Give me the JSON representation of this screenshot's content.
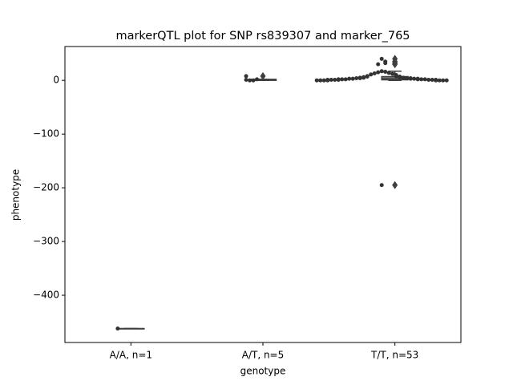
{
  "chart_data": {
    "type": "boxswarm",
    "title": "markerQTL plot for SNP rs839307 and marker_765",
    "x_label": "genotype",
    "y_label": "phenotype",
    "categories": [
      "A/A, n=1",
      "A/T, n=5",
      "T/T, n=53"
    ],
    "ylim": [
      -488,
      63
    ],
    "yticks": [
      {
        "value": -400,
        "label": "−400"
      },
      {
        "value": -300,
        "label": "−300"
      },
      {
        "value": -200,
        "label": "−200"
      },
      {
        "value": -100,
        "label": "−100"
      },
      0
    ],
    "boxes": [
      {
        "q1": -462,
        "median": -462,
        "q3": -462,
        "whislo": -462,
        "whishi": -462,
        "fliers": []
      },
      {
        "q1": 0,
        "median": 1,
        "q3": 2,
        "whislo": 0,
        "whishi": 2,
        "fliers": [
          8
        ]
      },
      {
        "q1": 1,
        "median": 3,
        "q3": 7,
        "whislo": 0,
        "whishi": 17,
        "fliers": [
          30,
          32,
          35,
          40,
          -195
        ]
      }
    ],
    "points": [
      [
        -462
      ],
      [
        0,
        0,
        1,
        2,
        8
      ],
      [
        -195,
        40,
        35,
        32,
        30,
        17,
        16,
        15,
        14,
        13,
        12,
        11,
        10,
        9,
        8,
        8,
        7,
        7,
        6,
        6,
        5,
        5,
        5,
        4,
        4,
        4,
        4,
        3,
        3,
        3,
        3,
        3,
        2,
        2,
        2,
        2,
        2,
        2,
        1,
        1,
        1,
        1,
        1,
        1,
        1,
        0,
        0,
        0,
        0,
        0,
        0,
        0,
        0
      ]
    ],
    "box_color": "#7f7f7f",
    "line_color": "#3f3f3f",
    "point_color": "#333333"
  }
}
